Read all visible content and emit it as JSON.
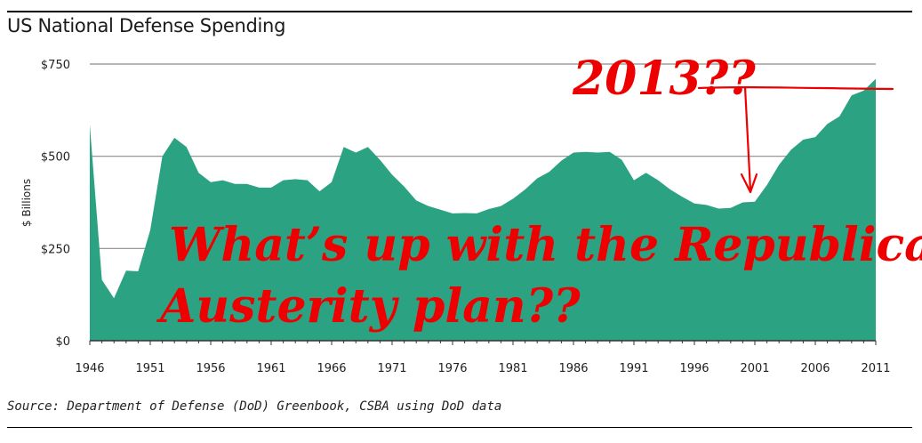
{
  "chart_title": "US National Defense Spending",
  "source_note": "Source: Department of Defense (DoD) Greenbook, CSBA using DoD data",
  "chart_data": {
    "type": "area",
    "title": "US National Defense Spending",
    "xlabel": "",
    "ylabel": "$ Billions",
    "xlim": [
      1946,
      2011
    ],
    "ylim": [
      0,
      750
    ],
    "y_ticks": [
      0,
      250,
      500,
      750
    ],
    "y_tick_labels": [
      "$0",
      "$250",
      "$500",
      "$750"
    ],
    "x_ticks": [
      1946,
      1951,
      1956,
      1961,
      1966,
      1971,
      1976,
      1981,
      1986,
      1991,
      1996,
      2001,
      2006,
      2011
    ],
    "x_tick_labels": [
      "1946",
      "1951",
      "1956",
      "1961",
      "1966",
      "1971",
      "1976",
      "1981",
      "1986",
      "1991",
      "1996",
      "2001",
      "2006",
      "2011"
    ],
    "grid": true,
    "area_color": "#2ba383",
    "x": [
      1946,
      1947,
      1948,
      1949,
      1950,
      1951,
      1952,
      1953,
      1954,
      1955,
      1956,
      1957,
      1958,
      1959,
      1960,
      1961,
      1962,
      1963,
      1964,
      1965,
      1966,
      1967,
      1968,
      1969,
      1970,
      1971,
      1972,
      1973,
      1974,
      1975,
      1976,
      1977,
      1978,
      1979,
      1980,
      1981,
      1982,
      1983,
      1984,
      1985,
      1986,
      1987,
      1988,
      1989,
      1990,
      1991,
      1992,
      1993,
      1994,
      1995,
      1996,
      1997,
      1998,
      1999,
      2000,
      2001,
      2002,
      2003,
      2004,
      2005,
      2006,
      2007,
      2008,
      2009,
      2010,
      2011
    ],
    "values": [
      585,
      165,
      115,
      190,
      188,
      300,
      500,
      550,
      525,
      455,
      430,
      435,
      425,
      425,
      415,
      415,
      435,
      438,
      435,
      405,
      430,
      525,
      510,
      525,
      490,
      450,
      418,
      380,
      365,
      355,
      345,
      346,
      345,
      357,
      365,
      385,
      410,
      440,
      458,
      488,
      510,
      512,
      510,
      512,
      490,
      435,
      455,
      435,
      410,
      390,
      372,
      368,
      358,
      360,
      375,
      377,
      422,
      477,
      518,
      545,
      552,
      588,
      608,
      665,
      678,
      710
    ],
    "annotations": [
      {
        "text": "2013??",
        "color": "#ee0000"
      },
      {
        "text": "What’s up with the Republican",
        "color": "#ee0000"
      },
      {
        "text": "Austerity plan??",
        "color": "#ee0000"
      }
    ]
  }
}
